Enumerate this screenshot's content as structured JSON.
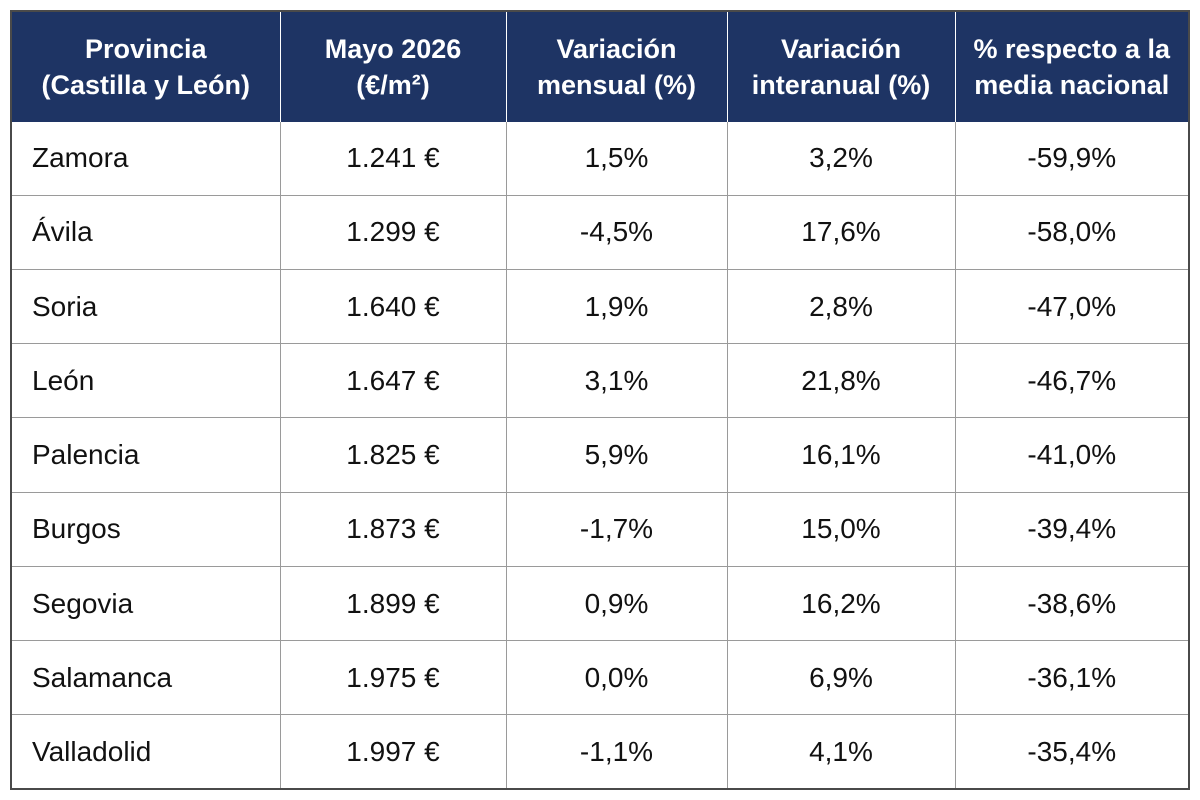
{
  "chart_data": {
    "type": "table",
    "columns": [
      [
        "Provincia",
        "(Castilla y León)"
      ],
      [
        "Mayo 2026",
        "(€/m²)"
      ],
      [
        "Variación",
        "mensual (%)"
      ],
      [
        "Variación",
        "interanual (%)"
      ],
      [
        "% respecto a la",
        "media nacional"
      ]
    ],
    "rows": [
      [
        "Zamora",
        "1.241 €",
        "1,5%",
        "3,2%",
        "-59,9%"
      ],
      [
        "Ávila",
        "1.299 €",
        "-4,5%",
        "17,6%",
        "-58,0%"
      ],
      [
        "Soria",
        "1.640 €",
        "1,9%",
        "2,8%",
        "-47,0%"
      ],
      [
        "León",
        "1.647 €",
        "3,1%",
        "21,8%",
        "-46,7%"
      ],
      [
        "Palencia",
        "1.825 €",
        "5,9%",
        "16,1%",
        "-41,0%"
      ],
      [
        "Burgos",
        "1.873 €",
        "-1,7%",
        "15,0%",
        "-39,4%"
      ],
      [
        "Segovia",
        "1.899 €",
        "0,9%",
        "16,2%",
        "-38,6%"
      ],
      [
        "Salamanca",
        "1.975 €",
        "0,0%",
        "6,9%",
        "-36,1%"
      ],
      [
        "Valladolid",
        "1.997 €",
        "-1,1%",
        "4,1%",
        "-35,4%"
      ]
    ],
    "values": {
      "price_eur_m2": [
        1241,
        1299,
        1640,
        1647,
        1825,
        1873,
        1899,
        1975,
        1997
      ],
      "monthly_change_pct": [
        1.5,
        -4.5,
        1.9,
        3.1,
        5.9,
        -1.7,
        0.9,
        0.0,
        -1.1
      ],
      "yearly_change_pct": [
        3.2,
        17.6,
        2.8,
        21.8,
        16.1,
        15.0,
        16.2,
        6.9,
        4.1
      ],
      "vs_national_avg_pct": [
        -59.9,
        -58.0,
        -47.0,
        -46.7,
        -41.0,
        -39.4,
        -38.6,
        -36.1,
        -35.4
      ]
    },
    "colors": {
      "header_bg": "#1e3464",
      "header_text": "#ffffff",
      "grid": "#9a9a9a",
      "frame": "#4a4a4a"
    }
  }
}
